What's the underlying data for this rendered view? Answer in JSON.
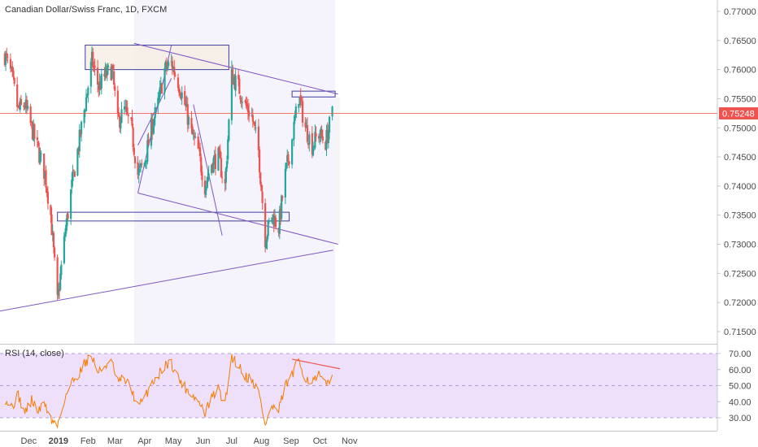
{
  "chart_data": [
    {
      "type": "candlestick",
      "title": "Canadian Dollar/Swiss Franc, 1D, FXCM",
      "ylim": [
        0.7125,
        0.7735
      ],
      "y_ticks": [
        "0.77000",
        "0.76500",
        "0.76000",
        "0.75500",
        "0.75000",
        "0.74500",
        "0.74000",
        "0.73500",
        "0.73000",
        "0.72500",
        "0.72000",
        "0.71500"
      ],
      "x_tick_labels": [
        "Dec",
        "2019",
        "Feb",
        "Mar",
        "Apr",
        "May",
        "Jun",
        "Jul",
        "Aug",
        "Sep",
        "Oct",
        "Nov"
      ],
      "last_price": "0.75248",
      "last_price_value": 0.75248,
      "colors": {
        "up": "#26a69a",
        "down": "#ef5350",
        "pattern": "#7e57c2",
        "box": "#3f3fa0",
        "zone": "#f5eee3",
        "price_line": "#ef5350"
      },
      "grid": false,
      "series": [
        {
          "waypoints": [
            [
              "2018-11-06",
              0.7625
            ],
            [
              "2018-11-13",
              0.759
            ],
            [
              "2018-11-20",
              0.753
            ],
            [
              "2018-11-27",
              0.754
            ],
            [
              "2018-12-04",
              0.75
            ],
            [
              "2018-12-11",
              0.746
            ],
            [
              "2018-12-18",
              0.742
            ],
            [
              "2018-12-24",
              0.735
            ],
            [
              "2018-12-31",
              0.72
            ],
            [
              "2019-01-08",
              0.732
            ],
            [
              "2019-01-15",
              0.74
            ],
            [
              "2019-01-22",
              0.747
            ],
            [
              "2019-01-29",
              0.754
            ],
            [
              "2019-02-05",
              0.7615
            ],
            [
              "2019-02-12",
              0.757
            ],
            [
              "2019-02-19",
              0.759
            ],
            [
              "2019-02-26",
              0.76
            ],
            [
              "2019-03-04",
              0.751
            ],
            [
              "2019-03-11",
              0.753
            ],
            [
              "2019-03-18",
              0.75
            ],
            [
              "2019-03-25",
              0.742
            ],
            [
              "2019-04-01",
              0.744
            ],
            [
              "2019-04-08",
              0.75
            ],
            [
              "2019-04-15",
              0.754
            ],
            [
              "2019-04-22",
              0.76
            ],
            [
              "2019-04-29",
              0.761
            ],
            [
              "2019-05-06",
              0.758
            ],
            [
              "2019-05-13",
              0.754
            ],
            [
              "2019-05-20",
              0.749
            ],
            [
              "2019-05-27",
              0.746
            ],
            [
              "2019-06-03",
              0.74
            ],
            [
              "2019-06-10",
              0.744
            ],
            [
              "2019-06-17",
              0.745
            ],
            [
              "2019-06-24",
              0.74
            ],
            [
              "2019-07-01",
              0.759
            ],
            [
              "2019-07-08",
              0.757
            ],
            [
              "2019-07-15",
              0.754
            ],
            [
              "2019-07-22",
              0.752
            ],
            [
              "2019-07-29",
              0.746
            ],
            [
              "2019-08-05",
              0.731
            ],
            [
              "2019-08-12",
              0.735
            ],
            [
              "2019-08-19",
              0.733
            ],
            [
              "2019-08-26",
              0.742
            ],
            [
              "2019-09-02",
              0.748
            ],
            [
              "2019-09-09",
              0.7555
            ],
            [
              "2019-09-16",
              0.75
            ],
            [
              "2019-09-23",
              0.747
            ],
            [
              "2019-09-30",
              0.749
            ],
            [
              "2019-10-07",
              0.7475
            ],
            [
              "2019-10-14",
              0.7525
            ]
          ]
        }
      ],
      "drawings": {
        "boxes": [
          {
            "from": "2019-01-29",
            "to": "2019-06-28",
            "top": 0.7642,
            "bottom": 0.76,
            "fill": "zone"
          },
          {
            "from": "2018-12-31",
            "to": "2019-08-30",
            "top": 0.7355,
            "bottom": 0.734,
            "fill": "none"
          },
          {
            "from": "2019-09-02",
            "to": "2019-10-17",
            "top": 0.7563,
            "bottom": 0.7553,
            "fill": "none"
          }
        ],
        "lines": [
          {
            "from": [
              "2019-03-21",
              0.7645
            ],
            "to": [
              "2019-10-20",
              0.7558
            ]
          },
          {
            "from": [
              "2019-03-25",
              0.7388
            ],
            "to": [
              "2019-10-20",
              0.73
            ]
          },
          {
            "from": [
              "2018-10-31",
              0.7185
            ],
            "to": [
              "2019-10-15",
              0.729
            ]
          },
          {
            "from": [
              "2019-03-25",
              0.7388
            ],
            "to": [
              "2019-04-29",
              0.7642
            ]
          },
          {
            "from": [
              "2019-03-25",
              0.747
            ],
            "to": [
              "2019-04-29",
              0.7585
            ]
          },
          {
            "from": [
              "2019-05-22",
              0.754
            ],
            "to": [
              "2019-06-21",
              0.7315
            ]
          }
        ]
      }
    },
    {
      "type": "line",
      "title": "RSI (14, close)",
      "ylim": [
        24,
        73
      ],
      "y_ticks": [
        "70.00",
        "60.00",
        "50.00",
        "40.00",
        "30.00"
      ],
      "bands": [
        30,
        70
      ],
      "colors": {
        "line": "#f57c00",
        "band_fill": "#eee0fb",
        "band_line": "#b39ddb",
        "trend": "#ef5350"
      },
      "series": [
        {
          "name": "RSI (14, close)",
          "waypoints": [
            [
              "2018-11-06",
              42
            ],
            [
              "2018-11-13",
              37
            ],
            [
              "2018-11-20",
              44
            ],
            [
              "2018-11-27",
              33
            ],
            [
              "2018-12-04",
              41
            ],
            [
              "2018-12-11",
              34
            ],
            [
              "2018-12-18",
              39
            ],
            [
              "2018-12-24",
              29
            ],
            [
              "2018-12-31",
              25
            ],
            [
              "2019-01-08",
              43
            ],
            [
              "2019-01-15",
              52
            ],
            [
              "2019-01-22",
              57
            ],
            [
              "2019-01-29",
              65
            ],
            [
              "2019-02-05",
              68
            ],
            [
              "2019-02-12",
              58
            ],
            [
              "2019-02-19",
              63
            ],
            [
              "2019-02-26",
              64
            ],
            [
              "2019-03-04",
              52
            ],
            [
              "2019-03-11",
              54
            ],
            [
              "2019-03-18",
              48
            ],
            [
              "2019-03-25",
              37
            ],
            [
              "2019-04-01",
              42
            ],
            [
              "2019-04-08",
              52
            ],
            [
              "2019-04-15",
              56
            ],
            [
              "2019-04-22",
              63
            ],
            [
              "2019-04-29",
              64
            ],
            [
              "2019-05-06",
              55
            ],
            [
              "2019-05-13",
              49
            ],
            [
              "2019-05-20",
              45
            ],
            [
              "2019-05-27",
              40
            ],
            [
              "2019-06-03",
              33
            ],
            [
              "2019-06-10",
              42
            ],
            [
              "2019-06-17",
              48
            ],
            [
              "2019-06-24",
              38
            ],
            [
              "2019-07-01",
              68
            ],
            [
              "2019-07-08",
              63
            ],
            [
              "2019-07-15",
              56
            ],
            [
              "2019-07-22",
              54
            ],
            [
              "2019-07-29",
              46
            ],
            [
              "2019-08-05",
              26
            ],
            [
              "2019-08-12",
              37
            ],
            [
              "2019-08-19",
              34
            ],
            [
              "2019-08-26",
              50
            ],
            [
              "2019-09-02",
              56
            ],
            [
              "2019-09-09",
              66
            ],
            [
              "2019-09-16",
              55
            ],
            [
              "2019-09-23",
              52
            ],
            [
              "2019-09-30",
              56
            ],
            [
              "2019-10-07",
              50
            ],
            [
              "2019-10-14",
              58
            ]
          ]
        }
      ],
      "drawings": {
        "lines": [
          {
            "from": [
              "2019-09-02",
              66.5
            ],
            "to": [
              "2019-10-22",
              60.5
            ]
          }
        ]
      }
    }
  ]
}
